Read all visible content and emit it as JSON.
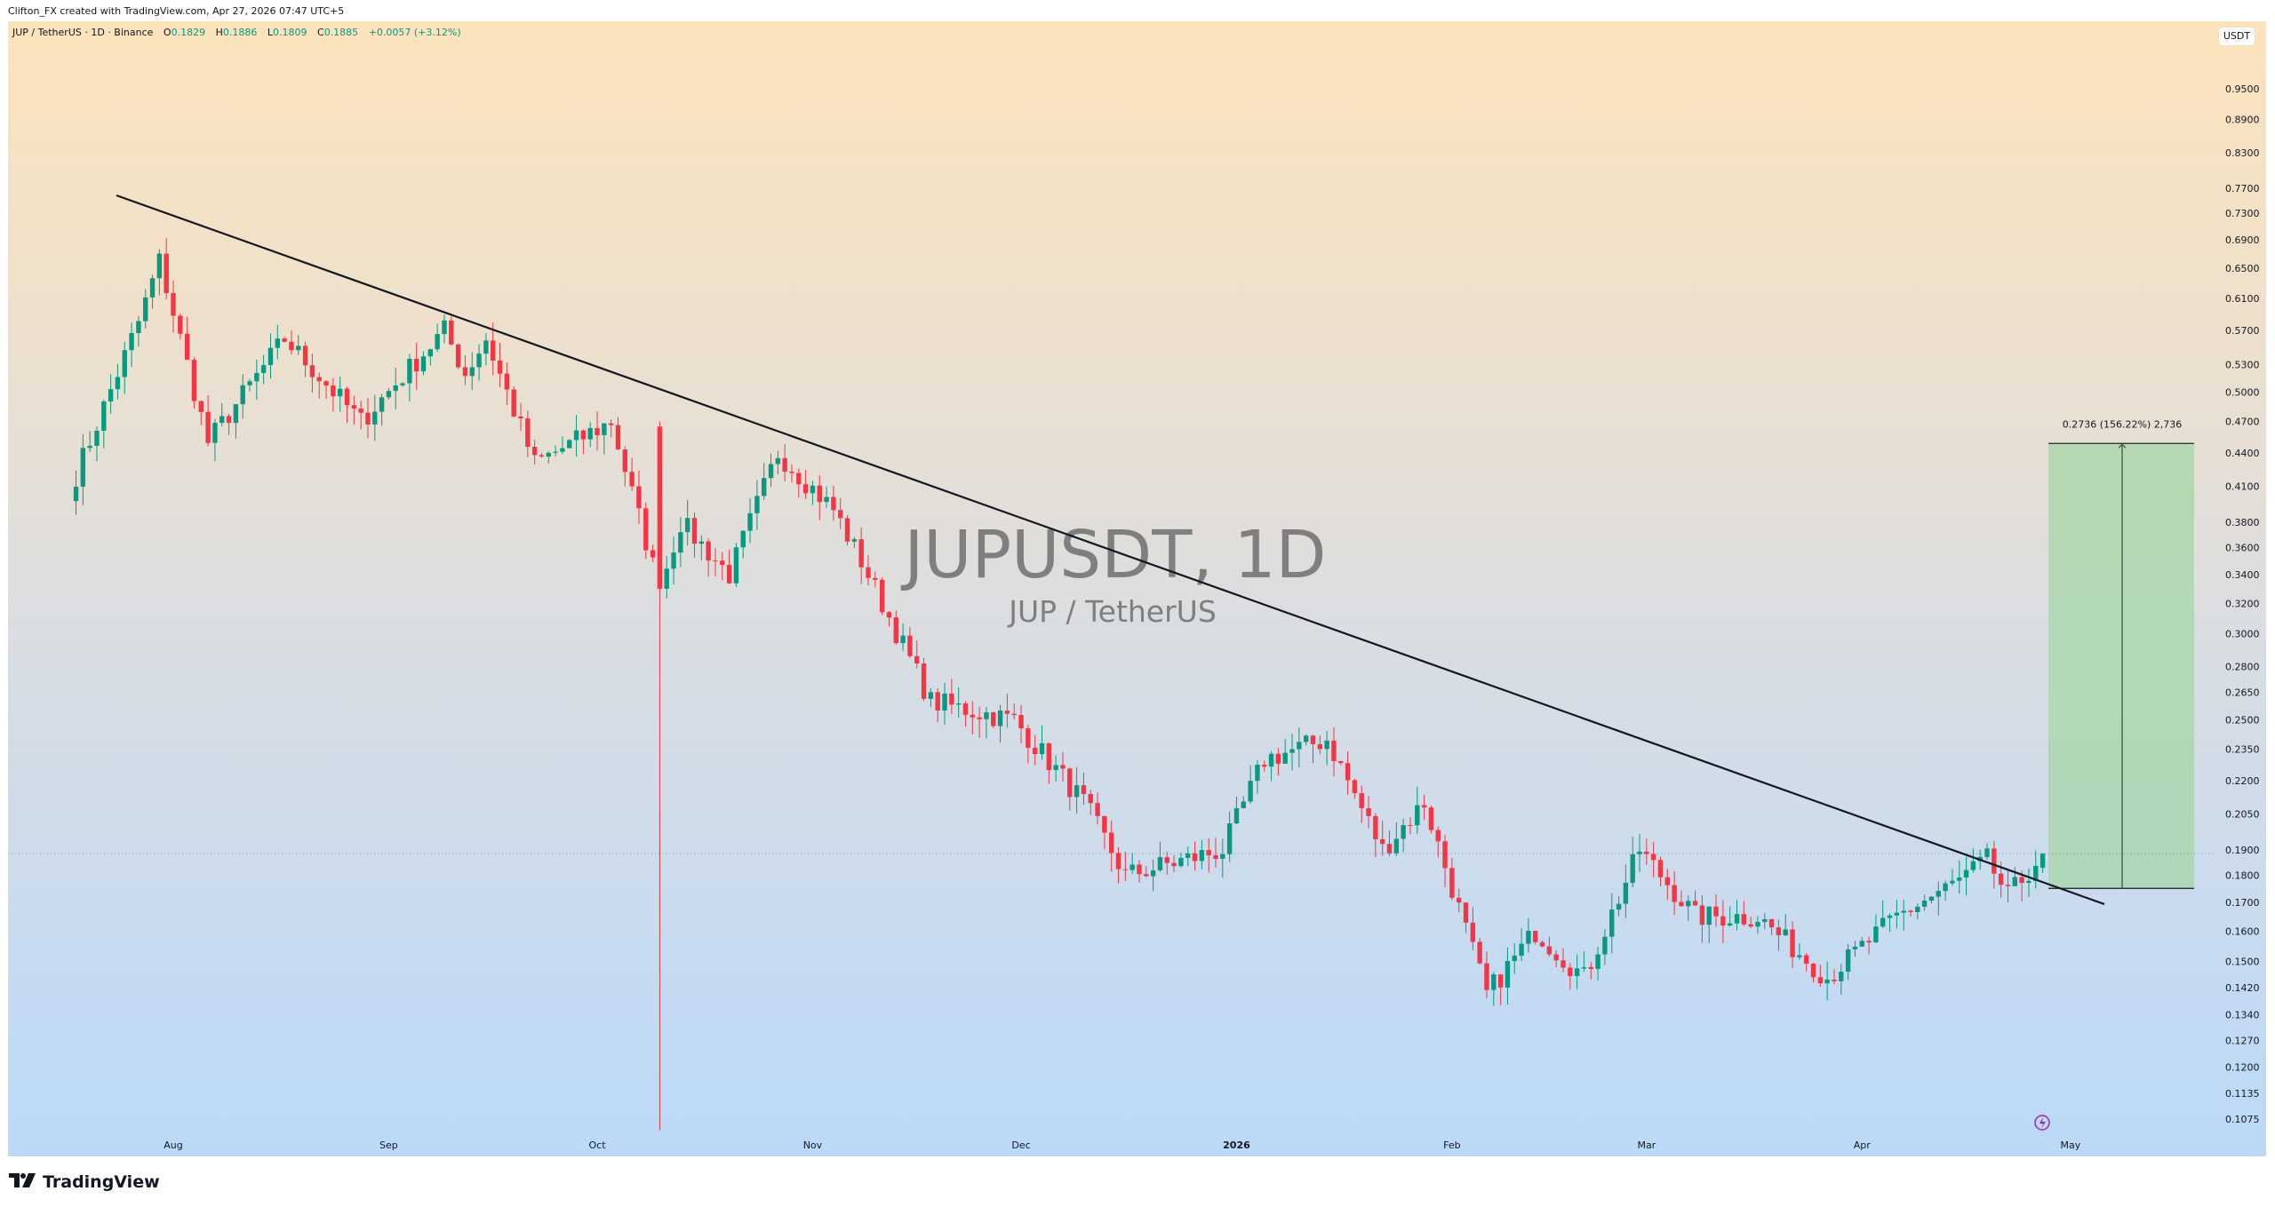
{
  "header": {
    "credit": "Clifton_FX created with TradingView.com, Apr 27, 2026 07:47 UTC+5"
  },
  "legend": {
    "symbol_line": "JUP / TetherUS · 1D · Binance",
    "open_label": "O",
    "open": "0.1829",
    "high_label": "H",
    "high": "0.1886",
    "low_label": "L",
    "low": "0.1809",
    "close_label": "C",
    "close": "0.1885",
    "change": "+0.0057 (+3.12%)"
  },
  "price_scale": {
    "unit_button": "USDT"
  },
  "watermark": {
    "title": "JUPUSDT, 1D",
    "subtitle": "JUP / TetherUS"
  },
  "measure": {
    "label": "0.2736 (156.22%) 2,736"
  },
  "footer": {
    "logo_mark": "TV",
    "logo_text": "TradingView"
  },
  "colors": {
    "up": "#089981",
    "down": "#f23645",
    "trendline": "#131722",
    "measure_fill": "#a5d6a7",
    "last_price_line": "#f23645",
    "alert_icon": "#9c27b0"
  },
  "chart_data": {
    "type": "candlestick",
    "title": "JUPUSDT, 1D",
    "subtitle": "JUP / TetherUS",
    "exchange": "Binance",
    "timeframe": "1D",
    "y_scale": "log",
    "ylim": [
      0.104,
      1.0
    ],
    "y_ticks": [
      "0.9500",
      "0.8900",
      "0.8300",
      "0.7700",
      "0.7300",
      "0.6900",
      "0.6500",
      "0.6100",
      "0.5700",
      "0.5300",
      "0.5000",
      "0.4700",
      "0.4400",
      "0.4100",
      "0.3800",
      "0.3600",
      "0.3400",
      "0.3200",
      "0.3000",
      "0.2800",
      "0.2650",
      "0.2500",
      "0.2350",
      "0.2200",
      "0.2050",
      "0.1900",
      "0.1800",
      "0.1700",
      "0.1600",
      "0.1500",
      "0.1420",
      "0.1340",
      "0.1270",
      "0.1200",
      "0.1135",
      "0.1075"
    ],
    "x_ticks": [
      "Aug",
      "Sep",
      "Oct",
      "Nov",
      "Dec",
      "2026",
      "Feb",
      "Mar",
      "Apr",
      "May"
    ],
    "last_price": 0.1885,
    "ohlc_last": {
      "open": 0.1829,
      "high": 0.1886,
      "low": 0.1809,
      "close": 0.1885,
      "change": 0.0057,
      "change_pct": 3.12
    },
    "close_path_keypoints": [
      {
        "date": "2025-07-18",
        "price": 0.42
      },
      {
        "date": "2025-07-27",
        "price": 0.58
      },
      {
        "date": "2025-07-30",
        "price": 0.66
      },
      {
        "date": "2025-08-06",
        "price": 0.45
      },
      {
        "date": "2025-08-17",
        "price": 0.56
      },
      {
        "date": "2025-08-28",
        "price": 0.47
      },
      {
        "date": "2025-09-09",
        "price": 0.57
      },
      {
        "date": "2025-09-12",
        "price": 0.52
      },
      {
        "date": "2025-09-15",
        "price": 0.56
      },
      {
        "date": "2025-09-22",
        "price": 0.43
      },
      {
        "date": "2025-10-03",
        "price": 0.47
      },
      {
        "date": "2025-10-10",
        "price": 0.33
      },
      {
        "date": "2025-10-13",
        "price": 0.38
      },
      {
        "date": "2025-10-20",
        "price": 0.34
      },
      {
        "date": "2025-10-27",
        "price": 0.44
      },
      {
        "date": "2025-11-04",
        "price": 0.39
      },
      {
        "date": "2025-11-08",
        "price": 0.35
      },
      {
        "date": "2025-11-18",
        "price": 0.26
      },
      {
        "date": "2025-11-30",
        "price": 0.25
      },
      {
        "date": "2025-12-10",
        "price": 0.21
      },
      {
        "date": "2025-12-16",
        "price": 0.18
      },
      {
        "date": "2025-12-30",
        "price": 0.19
      },
      {
        "date": "2026-01-05",
        "price": 0.23
      },
      {
        "date": "2026-01-14",
        "price": 0.24
      },
      {
        "date": "2026-01-22",
        "price": 0.19
      },
      {
        "date": "2026-01-28",
        "price": 0.21
      },
      {
        "date": "2026-02-06",
        "price": 0.14
      },
      {
        "date": "2026-02-13",
        "price": 0.16
      },
      {
        "date": "2026-02-20",
        "price": 0.145
      },
      {
        "date": "2026-02-28",
        "price": 0.19
      },
      {
        "date": "2026-03-08",
        "price": 0.165
      },
      {
        "date": "2026-03-17",
        "price": 0.165
      },
      {
        "date": "2026-03-27",
        "price": 0.145
      },
      {
        "date": "2026-04-06",
        "price": 0.165
      },
      {
        "date": "2026-04-15",
        "price": 0.178
      },
      {
        "date": "2026-04-19",
        "price": 0.186
      },
      {
        "date": "2026-04-22",
        "price": 0.172
      },
      {
        "date": "2026-04-27",
        "price": 0.1885
      }
    ],
    "notable": {
      "oct10_wick_low": 0.105,
      "all_time_window_high": 0.69
    },
    "annotations": [
      {
        "type": "trendline",
        "from": {
          "date": "2025-07-26",
          "price": 0.75
        },
        "to": {
          "date": "2026-05-01",
          "price": 0.168
        },
        "description": "descending resistance trendline, broken to upside in late April 2026"
      },
      {
        "type": "price_range_measure",
        "from_price": 0.1751,
        "to_price": 0.4487,
        "label": "0.2736 (156.22%) 2,736"
      },
      {
        "type": "horizontal_line",
        "price": 0.1885,
        "style": "dotted",
        "description": "last price line"
      }
    ]
  }
}
